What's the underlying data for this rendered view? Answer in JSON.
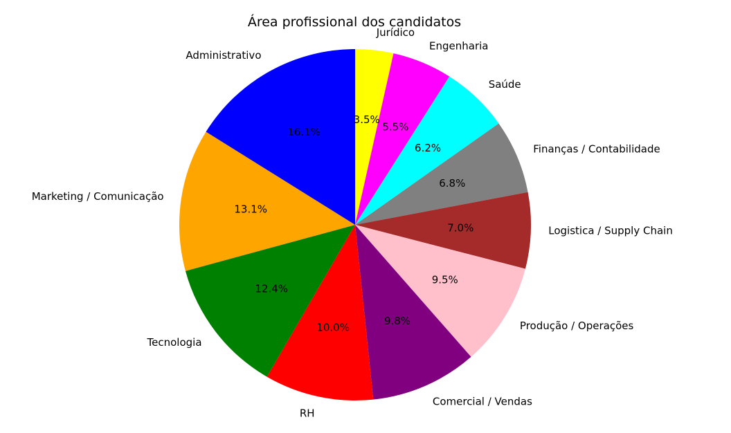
{
  "chart_data": {
    "type": "pie",
    "title": "Área profissional dos candidatos",
    "start_angle_deg": 90,
    "direction": "clockwise",
    "categories": [
      "Jurídico",
      "Engenharia",
      "Saúde",
      "Finanças / Contabilidade",
      "Logistica / Supply Chain",
      "Produção / Operações",
      "Comercial / Vendas",
      "RH",
      "Tecnologia",
      "Marketing / Comunicação",
      "Administrativo"
    ],
    "values": [
      3.5,
      5.5,
      6.2,
      6.8,
      7.0,
      9.5,
      9.8,
      10.0,
      12.4,
      13.1,
      16.1
    ],
    "value_labels": [
      "3.5%",
      "5.5%",
      "6.2%",
      "6.8%",
      "7.0%",
      "9.5%",
      "9.8%",
      "10.0%",
      "12.4%",
      "13.1%",
      "16.1%"
    ],
    "colors": [
      "#ffff00",
      "#ff00ff",
      "#00ffff",
      "#808080",
      "#a52a2a",
      "#ffc0cb",
      "#800080",
      "#ff0000",
      "#008000",
      "#ffa500",
      "#0000ff"
    ]
  }
}
